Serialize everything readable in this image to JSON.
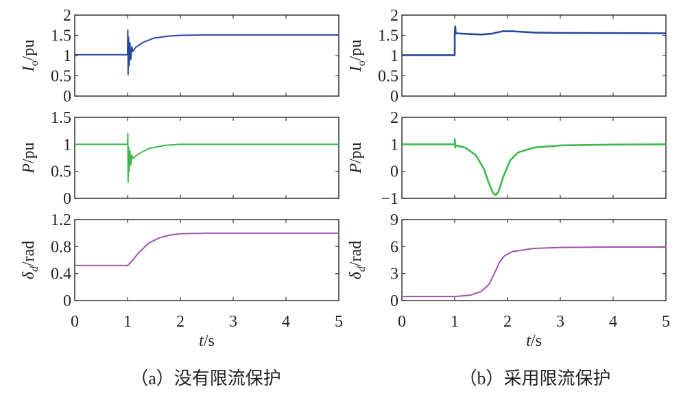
{
  "chart_data": [
    {
      "panel": "a",
      "type": "line",
      "ylabel_main": "I",
      "ylabel_sub": "o",
      "ylabel_unit": "/pu",
      "xlim": [
        0,
        5
      ],
      "ylim": [
        0,
        2
      ],
      "yticks": [
        "0",
        "0.5",
        "1",
        "1.5",
        "2"
      ],
      "ytick_values": [
        0,
        0.5,
        1,
        1.5,
        2
      ],
      "color": "#2848a0",
      "points": [
        [
          0,
          1.02
        ],
        [
          1.0,
          1.02
        ],
        [
          1.005,
          1.63
        ],
        [
          1.01,
          0.53
        ],
        [
          1.02,
          1.45
        ],
        [
          1.03,
          0.75
        ],
        [
          1.045,
          1.32
        ],
        [
          1.06,
          0.9
        ],
        [
          1.08,
          1.22
        ],
        [
          1.1,
          1.1
        ],
        [
          1.15,
          1.2
        ],
        [
          1.3,
          1.33
        ],
        [
          1.5,
          1.43
        ],
        [
          1.75,
          1.48
        ],
        [
          2,
          1.5
        ],
        [
          2.5,
          1.51
        ],
        [
          5,
          1.51
        ]
      ]
    },
    {
      "panel": "a",
      "type": "line",
      "ylabel_main": "P",
      "ylabel_sub": "",
      "ylabel_unit": "/pu",
      "xlim": [
        0,
        5
      ],
      "ylim": [
        0,
        1.5
      ],
      "yticks": [
        "0",
        "0.5",
        "1",
        "1.5"
      ],
      "ytick_values": [
        0,
        0.5,
        1,
        1.5
      ],
      "color": "#3cb84a",
      "points": [
        [
          0,
          1.0
        ],
        [
          1.0,
          1.0
        ],
        [
          1.005,
          1.2
        ],
        [
          1.01,
          0.3
        ],
        [
          1.02,
          0.95
        ],
        [
          1.03,
          0.5
        ],
        [
          1.045,
          0.88
        ],
        [
          1.06,
          0.62
        ],
        [
          1.08,
          0.8
        ],
        [
          1.1,
          0.74
        ],
        [
          1.2,
          0.82
        ],
        [
          1.4,
          0.92
        ],
        [
          1.7,
          0.98
        ],
        [
          2,
          1.0
        ],
        [
          5,
          1.0
        ]
      ]
    },
    {
      "panel": "a",
      "type": "line",
      "ylabel_main": "δ",
      "ylabel_sub": "d",
      "ylabel_unit": "/rad",
      "xlim": [
        0,
        5
      ],
      "ylim": [
        0,
        1.2
      ],
      "yticks": [
        "0",
        "0.4",
        "0.8",
        "1.2"
      ],
      "ytick_values": [
        0,
        0.4,
        0.8,
        1.2
      ],
      "color": "#a050b0",
      "xticks": [
        "0",
        "1",
        "2",
        "3",
        "4",
        "5"
      ],
      "xlabel_main": "t",
      "xlabel_unit": "/s",
      "points": [
        [
          0,
          0.52
        ],
        [
          1,
          0.52
        ],
        [
          1.1,
          0.6
        ],
        [
          1.2,
          0.7
        ],
        [
          1.4,
          0.85
        ],
        [
          1.6,
          0.93
        ],
        [
          1.8,
          0.97
        ],
        [
          2,
          0.99
        ],
        [
          2.5,
          1.0
        ],
        [
          5,
          1.0
        ]
      ]
    },
    {
      "panel": "b",
      "type": "line",
      "ylabel_main": "I",
      "ylabel_sub": "o",
      "ylabel_unit": "/pu",
      "xlim": [
        0,
        5
      ],
      "ylim": [
        0,
        2
      ],
      "yticks": [
        "0",
        "0.5",
        "1",
        "1.5",
        "2"
      ],
      "ytick_values": [
        0,
        0.5,
        1,
        1.5,
        2
      ],
      "color": "#2848a0",
      "points": [
        [
          0,
          1.01
        ],
        [
          1.0,
          1.01
        ],
        [
          1.001,
          1.55
        ],
        [
          1.01,
          1.72
        ],
        [
          1.02,
          1.55
        ],
        [
          1.3,
          1.53
        ],
        [
          1.5,
          1.52
        ],
        [
          1.7,
          1.54
        ],
        [
          1.9,
          1.6
        ],
        [
          2.1,
          1.6
        ],
        [
          2.5,
          1.57
        ],
        [
          3,
          1.56
        ],
        [
          5,
          1.55
        ]
      ]
    },
    {
      "panel": "b",
      "type": "line",
      "ylabel_main": "P",
      "ylabel_sub": "",
      "ylabel_unit": "/pu",
      "xlim": [
        0,
        5
      ],
      "ylim": [
        -1,
        2
      ],
      "yticks": [
        "−1",
        "0",
        "1",
        "2"
      ],
      "ytick_values": [
        -1,
        0,
        1,
        2
      ],
      "color": "#3cb84a",
      "points": [
        [
          0,
          1.0
        ],
        [
          1.0,
          1.0
        ],
        [
          1.003,
          1.2
        ],
        [
          1.01,
          0.88
        ],
        [
          1.02,
          0.96
        ],
        [
          1.2,
          0.88
        ],
        [
          1.4,
          0.6
        ],
        [
          1.55,
          0.1
        ],
        [
          1.65,
          -0.45
        ],
        [
          1.73,
          -0.82
        ],
        [
          1.78,
          -0.88
        ],
        [
          1.83,
          -0.75
        ],
        [
          1.93,
          -0.15
        ],
        [
          2.05,
          0.4
        ],
        [
          2.2,
          0.7
        ],
        [
          2.5,
          0.88
        ],
        [
          3,
          0.96
        ],
        [
          4,
          0.99
        ],
        [
          5,
          1.0
        ]
      ]
    },
    {
      "panel": "b",
      "type": "line",
      "ylabel_main": "δ",
      "ylabel_sub": "d",
      "ylabel_unit": "/rad",
      "xlim": [
        0,
        5
      ],
      "ylim": [
        0,
        9
      ],
      "yticks": [
        "0",
        "3",
        "6",
        "9"
      ],
      "ytick_values": [
        0,
        3,
        6,
        9
      ],
      "color": "#a050b0",
      "xticks": [
        "0",
        "1",
        "2",
        "3",
        "4",
        "5"
      ],
      "xlabel_main": "t",
      "xlabel_unit": "/s",
      "points": [
        [
          0,
          0.45
        ],
        [
          1,
          0.45
        ],
        [
          1.3,
          0.6
        ],
        [
          1.5,
          1.0
        ],
        [
          1.65,
          1.8
        ],
        [
          1.75,
          3.0
        ],
        [
          1.85,
          4.3
        ],
        [
          1.95,
          5.0
        ],
        [
          2.1,
          5.45
        ],
        [
          2.5,
          5.8
        ],
        [
          3,
          5.9
        ],
        [
          4,
          5.95
        ],
        [
          5,
          5.95
        ]
      ]
    }
  ],
  "captions": {
    "a": "（a）没有限流保护",
    "b": "（b）采用限流保护"
  }
}
